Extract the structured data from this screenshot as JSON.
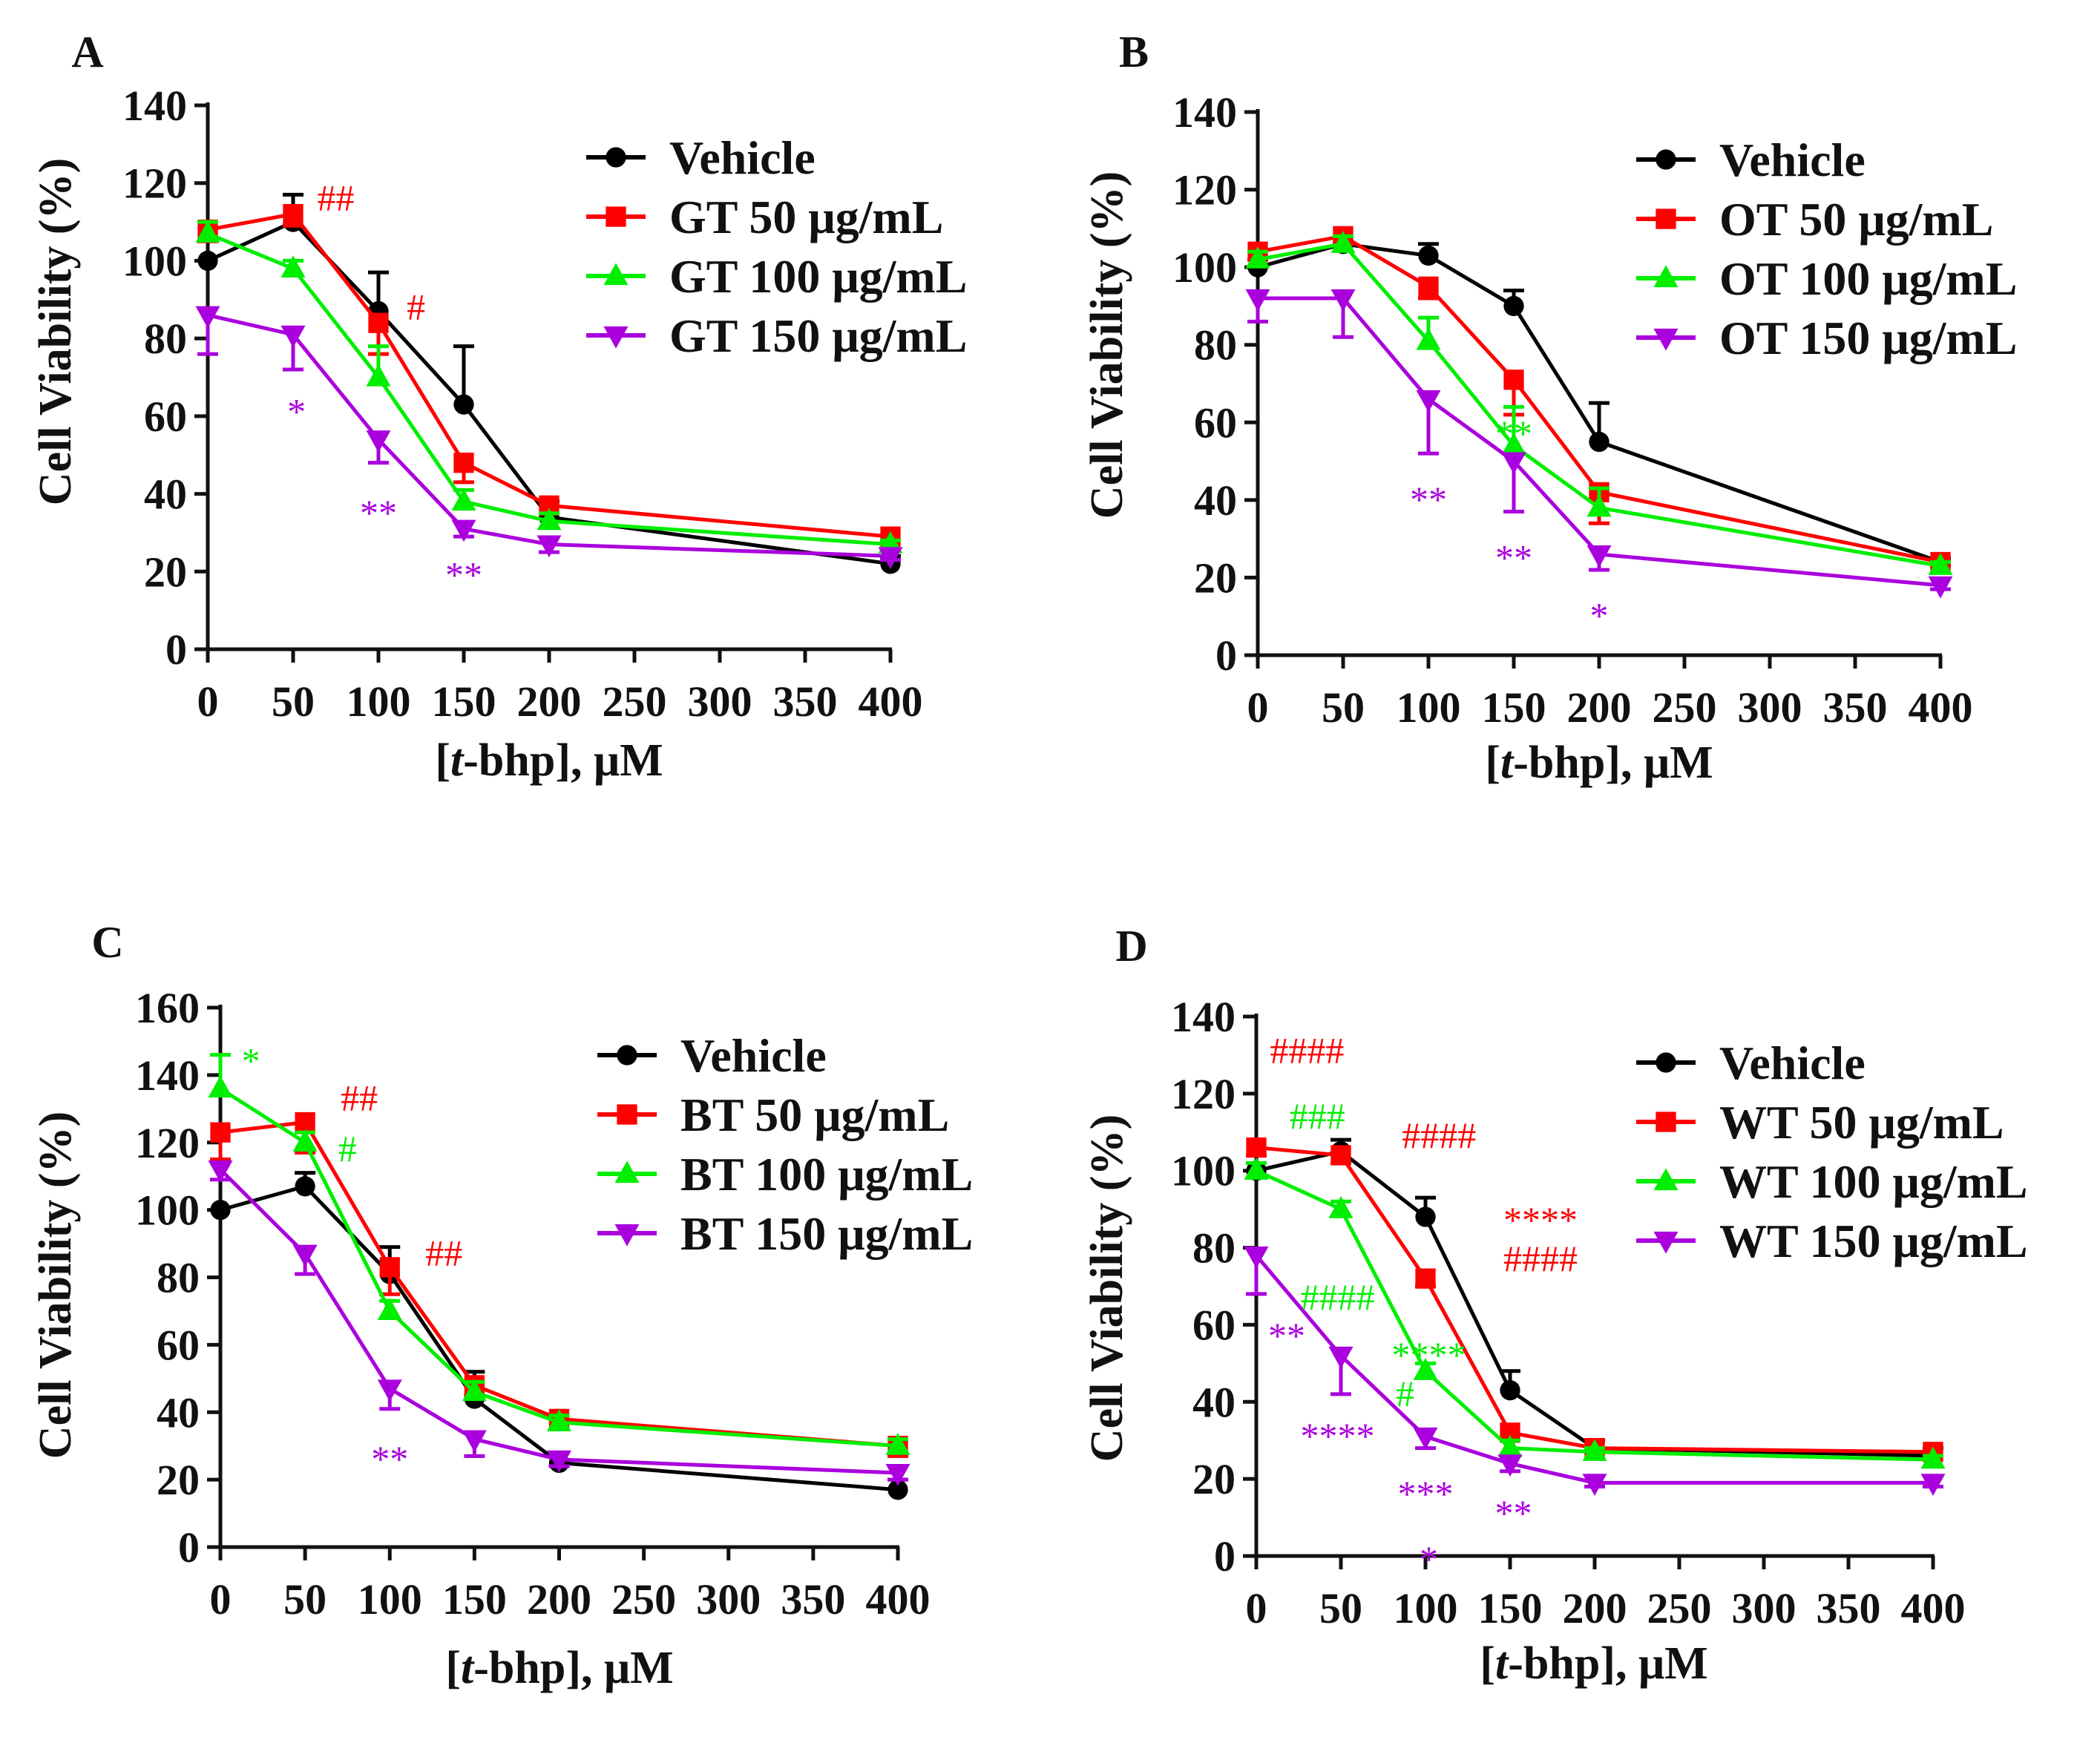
{
  "figure": {
    "x_ticks": [
      "0",
      "50",
      "100",
      "150",
      "200",
      "250",
      "300",
      "350",
      "400"
    ]
  },
  "chart_data": [
    {
      "type": "line",
      "panel": "A",
      "xlabel": "[t-bhp], μM",
      "ylabel": "Cell Viability (%)",
      "x_ticks": [
        0,
        50,
        100,
        150,
        200,
        250,
        300,
        350,
        400
      ],
      "ylim": [
        0,
        140
      ],
      "y_ticks": [
        0,
        20,
        40,
        60,
        80,
        100,
        120,
        140
      ],
      "legend_position": "top-right",
      "x": [
        0,
        50,
        100,
        150,
        200,
        400
      ],
      "series": [
        {
          "name": "Vehicle",
          "color": "#000000",
          "marker": "circle",
          "values": [
            100,
            110,
            87,
            63,
            34,
            22
          ],
          "errors": [
            0,
            7,
            10,
            15,
            4,
            2
          ]
        },
        {
          "name": "GT 50 μg/mL",
          "color": "#ff0000",
          "marker": "square",
          "values": [
            108,
            112,
            84,
            48,
            37,
            29
          ],
          "errors": [
            3,
            3,
            8,
            5,
            2,
            1
          ]
        },
        {
          "name": "GT 100 μg/mL",
          "color": "#00ee00",
          "marker": "triangle-up",
          "values": [
            107,
            98,
            70,
            38,
            33,
            27
          ],
          "errors": [
            3,
            2,
            8,
            3,
            2,
            1
          ]
        },
        {
          "name": "GT 150 μg/mL",
          "color": "#aa00dd",
          "marker": "triangle-down",
          "values": [
            86,
            81,
            54,
            31,
            27,
            24
          ],
          "errors": [
            10,
            9,
            6,
            2,
            2,
            1
          ]
        }
      ],
      "annotations": [
        {
          "text": "##",
          "x": 75,
          "y": 116,
          "color": "#ff0000"
        },
        {
          "text": "#",
          "x": 122,
          "y": 88,
          "color": "#ff0000"
        },
        {
          "text": "*",
          "x": 52,
          "y": 61,
          "color": "#aa00dd"
        },
        {
          "text": "**",
          "x": 100,
          "y": 35,
          "color": "#aa00dd"
        },
        {
          "text": "**",
          "x": 150,
          "y": 19,
          "color": "#aa00dd"
        }
      ]
    },
    {
      "type": "line",
      "panel": "B",
      "xlabel": "[t-bhp], μM",
      "ylabel": "Cell Viability (%)",
      "x_ticks": [
        0,
        50,
        100,
        150,
        200,
        250,
        300,
        350,
        400
      ],
      "ylim": [
        0,
        140
      ],
      "y_ticks": [
        0,
        20,
        40,
        60,
        80,
        100,
        120,
        140
      ],
      "legend_position": "top-right",
      "x": [
        0,
        50,
        100,
        150,
        200,
        400
      ],
      "series": [
        {
          "name": "Vehicle",
          "color": "#000000",
          "marker": "circle",
          "values": [
            100,
            106,
            103,
            90,
            55,
            24
          ],
          "errors": [
            2,
            2,
            3,
            4,
            10,
            1
          ]
        },
        {
          "name": "OT 50 μg/mL",
          "color": "#ff0000",
          "marker": "square",
          "values": [
            104,
            108,
            95,
            71,
            42,
            24
          ],
          "errors": [
            2,
            2,
            3,
            9,
            8,
            1
          ]
        },
        {
          "name": "OT 100 μg/mL",
          "color": "#00ee00",
          "marker": "triangle-up",
          "values": [
            102,
            106,
            81,
            54,
            38,
            23
          ],
          "errors": [
            2,
            2,
            6,
            10,
            5,
            1
          ]
        },
        {
          "name": "OT 150 μg/mL",
          "color": "#aa00dd",
          "marker": "triangle-down",
          "values": [
            92,
            92,
            66,
            50,
            26,
            18
          ],
          "errors": [
            6,
            10,
            14,
            13,
            4,
            1
          ]
        }
      ],
      "annotations": [
        {
          "text": "**",
          "x": 150,
          "y": 57,
          "color": "#00ee00"
        },
        {
          "text": "**",
          "x": 100,
          "y": 40,
          "color": "#aa00dd"
        },
        {
          "text": "**",
          "x": 150,
          "y": 25,
          "color": "#aa00dd"
        },
        {
          "text": "*",
          "x": 200,
          "y": 10,
          "color": "#aa00dd"
        }
      ]
    },
    {
      "type": "line",
      "panel": "C",
      "xlabel": "[t-bhp], μM",
      "ylabel": "Cell Viability (%)",
      "x_ticks": [
        0,
        50,
        100,
        150,
        200,
        250,
        300,
        350,
        400
      ],
      "ylim": [
        0,
        160
      ],
      "y_ticks": [
        0,
        20,
        40,
        60,
        80,
        100,
        120,
        140,
        160
      ],
      "legend_position": "top-right",
      "x": [
        0,
        50,
        100,
        150,
        200,
        400
      ],
      "series": [
        {
          "name": "Vehicle",
          "color": "#000000",
          "marker": "circle",
          "values": [
            100,
            107,
            81,
            44,
            25,
            17
          ],
          "errors": [
            0,
            4,
            8,
            8,
            3,
            3
          ]
        },
        {
          "name": "BT 50 μg/mL",
          "color": "#ff0000",
          "marker": "square",
          "values": [
            123,
            126,
            83,
            48,
            38,
            30
          ],
          "errors": [
            8,
            9,
            8,
            3,
            3,
            3
          ]
        },
        {
          "name": "BT 100 μg/mL",
          "color": "#00ee00",
          "marker": "triangle-up",
          "values": [
            136,
            120,
            70,
            46,
            37,
            30
          ],
          "errors": [
            10,
            3,
            3,
            3,
            2,
            2
          ]
        },
        {
          "name": "BT 150 μg/mL",
          "color": "#aa00dd",
          "marker": "triangle-down",
          "values": [
            112,
            87,
            47,
            32,
            26,
            22
          ],
          "errors": [
            3,
            6,
            6,
            5,
            2,
            2
          ]
        }
      ],
      "annotations": [
        {
          "text": "*",
          "x": 18,
          "y": 144,
          "color": "#00ee00"
        },
        {
          "text": "##",
          "x": 82,
          "y": 133,
          "color": "#ff0000"
        },
        {
          "text": "#",
          "x": 75,
          "y": 118,
          "color": "#00ee00"
        },
        {
          "text": "##",
          "x": 132,
          "y": 87,
          "color": "#ff0000"
        },
        {
          "text": "**",
          "x": 100,
          "y": 26,
          "color": "#aa00dd"
        }
      ]
    },
    {
      "type": "line",
      "panel": "D",
      "xlabel": "[t-bhp], μM",
      "ylabel": "Cell Viability (%)",
      "x_ticks": [
        0,
        50,
        100,
        150,
        200,
        250,
        300,
        350,
        400
      ],
      "ylim": [
        0,
        140
      ],
      "y_ticks": [
        0,
        20,
        40,
        60,
        80,
        100,
        120,
        140
      ],
      "legend_position": "top-right",
      "x": [
        0,
        50,
        100,
        150,
        200,
        400
      ],
      "series": [
        {
          "name": "Vehicle",
          "color": "#000000",
          "marker": "circle",
          "values": [
            100,
            105,
            88,
            43,
            28,
            26
          ],
          "errors": [
            0,
            3,
            5,
            5,
            2,
            2
          ]
        },
        {
          "name": "WT 50 μg/mL",
          "color": "#ff0000",
          "marker": "square",
          "values": [
            106,
            104,
            72,
            32,
            28,
            27
          ],
          "errors": [
            2,
            2,
            2,
            2,
            1,
            1
          ]
        },
        {
          "name": "WT 100 μg/mL",
          "color": "#00ee00",
          "marker": "triangle-up",
          "values": [
            100,
            90,
            48,
            28,
            27,
            25
          ],
          "errors": [
            2,
            2,
            2,
            2,
            1,
            1
          ]
        },
        {
          "name": "WT 150 μg/mL",
          "color": "#aa00dd",
          "marker": "triangle-down",
          "values": [
            78,
            52,
            31,
            24,
            19,
            19
          ],
          "errors": [
            10,
            10,
            3,
            2,
            1,
            1
          ]
        }
      ],
      "annotations": [
        {
          "text": "####",
          "x": 30,
          "y": 131,
          "color": "#ff0000"
        },
        {
          "text": "###",
          "x": 36,
          "y": 114,
          "color": "#00ee00"
        },
        {
          "text": "####",
          "x": 108,
          "y": 109,
          "color": "#ff0000"
        },
        {
          "text": "****",
          "x": 168,
          "y": 87,
          "color": "#ff0000"
        },
        {
          "text": "####",
          "x": 168,
          "y": 77,
          "color": "#ff0000"
        },
        {
          "text": "####",
          "x": 48,
          "y": 67,
          "color": "#00ee00"
        },
        {
          "text": "**",
          "x": 18,
          "y": 57,
          "color": "#aa00dd"
        },
        {
          "text": "****",
          "x": 102,
          "y": 52,
          "color": "#00ee00"
        },
        {
          "text": "#",
          "x": 88,
          "y": 42,
          "color": "#00ee00"
        },
        {
          "text": "****",
          "x": 48,
          "y": 31,
          "color": "#aa00dd"
        },
        {
          "text": "***",
          "x": 100,
          "y": 16,
          "color": "#aa00dd"
        },
        {
          "text": "**",
          "x": 152,
          "y": 11,
          "color": "#aa00dd"
        },
        {
          "text": "*",
          "x": 102,
          "y": -1,
          "color": "#aa00dd"
        }
      ]
    }
  ]
}
